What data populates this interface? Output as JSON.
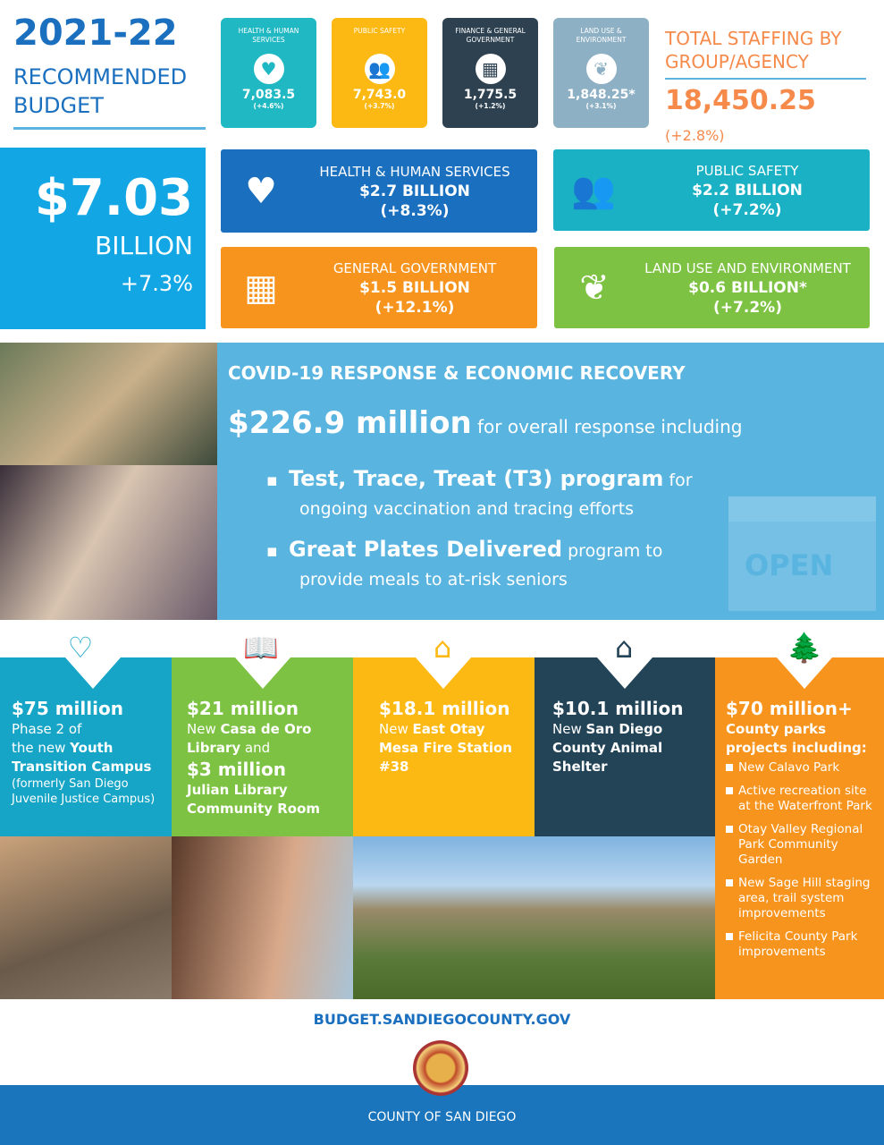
{
  "header": {
    "year": "2021-22",
    "subtitle": "RECOMMENDED BUDGET"
  },
  "tiles": [
    {
      "label": "HEALTH & HUMAN SERVICES",
      "value": "7,083.5",
      "change": "(+4.6%)",
      "color": "#1fb8c3",
      "icon": "heart-person-icon"
    },
    {
      "label": "PUBLIC SAFETY",
      "value": "7,743.0",
      "change": "(+3.7%)",
      "color": "#fdb913",
      "icon": "people-group-icon"
    },
    {
      "label": "FINANCE & GENERAL GOVERNMENT",
      "value": "1,775.5",
      "change": "(+1.2%)",
      "color": "#2d4150",
      "icon": "building-icon"
    },
    {
      "label": "LAND USE & ENVIRONMENT",
      "value": "1,848.25*",
      "change": "(+3.1%)",
      "color": "#8eb0c4",
      "icon": "hands-plant-icon"
    }
  ],
  "staffing": {
    "title": "TOTAL STAFFING BY GROUP/AGENCY",
    "value": "18,450.25",
    "change": "(+2.8%)"
  },
  "total": {
    "amount": "$7.03",
    "unit": "BILLION",
    "change": "+7.3%"
  },
  "groups": [
    {
      "name": "HEALTH & HUMAN SERVICES",
      "amount": "$2.7 BILLION",
      "change": "(+8.3%)",
      "color": "#1a6fbf"
    },
    {
      "name": "PUBLIC SAFETY",
      "amount": "$2.2 BILLION",
      "change": "(+7.2%)",
      "color": "#1ab1c4"
    },
    {
      "name": "GENERAL GOVERNMENT",
      "amount": "$1.5 BILLION",
      "change": "(+12.1%)",
      "color": "#f7941d"
    },
    {
      "name": "LAND USE AND ENVIRONMENT",
      "amount": "$0.6 BILLION*",
      "change": "(+7.2%)",
      "color": "#7dc242"
    }
  ],
  "covid": {
    "title": "COVID-19 RESPONSE & ECONOMIC RECOVERY",
    "amount": "$226.9 million",
    "amount_rest": "for overall response including",
    "bullets": [
      {
        "bold": "Test, Trace, Treat (T3) program",
        "rest": "for",
        "line2": "ongoing vaccination and tracing efforts"
      },
      {
        "bold": "Great Plates Delivered",
        "rest": "program to",
        "line2": "provide meals to at-risk seniors"
      }
    ],
    "sign": "OPEN"
  },
  "projects": [
    {
      "amount": "$75 million",
      "l1": "Phase 2 of",
      "l2a": "the new ",
      "l2b": "Youth",
      "l3": "Transition Campus",
      "l4": "(formerly San Diego Juvenile Justice Campus)"
    },
    {
      "amount": "$21 million",
      "l1a": "New ",
      "l1b": "Casa de Oro",
      "l2a": "Library",
      "l2b": " and",
      "amount2": "$3 million",
      "l3": "Julian Library Community Room"
    },
    {
      "amount": "$18.1 million",
      "l1a": "New ",
      "l1b": "East Otay",
      "l2": "Mesa Fire Station #38"
    },
    {
      "amount": "$10.1 million",
      "l1a": "New ",
      "l1b": "San Diego",
      "l2": "County Animal Shelter"
    },
    {
      "amount": "$70 million+",
      "l1": "County parks projects including:",
      "items": [
        "New Calavo Park",
        "Active recreation site at the Waterfront Park",
        "Otay Valley Regional Park Community Garden",
        "New Sage Hill staging area, trail system improvements",
        "Felicita County Park improvements"
      ]
    }
  ],
  "footer": {
    "url": "BUDGET.SANDIEGOCOUNTY.GOV",
    "county": "COUNTY OF SAN DIEGO"
  }
}
